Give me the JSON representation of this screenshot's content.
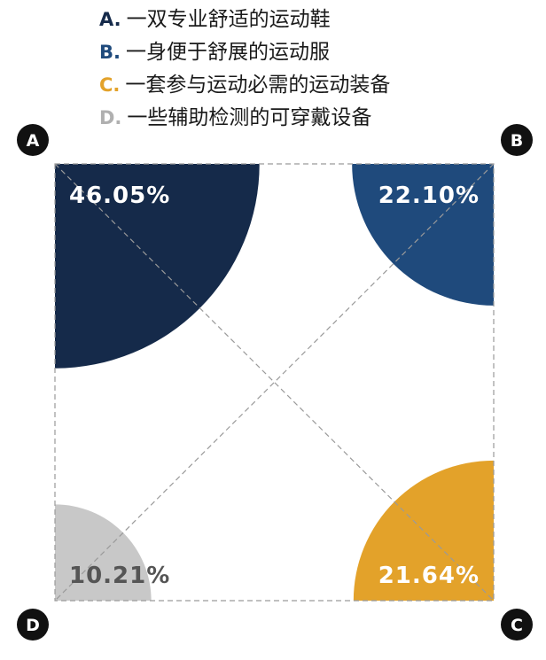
{
  "chart_data": {
    "type": "pie",
    "colors": {
      "A": "#152a4a",
      "B": "#1f4a7c",
      "C": "#e3a22a",
      "D": "#c8c8c8"
    },
    "corner_labels": [
      "A",
      "B",
      "C",
      "D"
    ],
    "legend": [
      {
        "key": "A.",
        "label": "一双专业舒适的运动鞋"
      },
      {
        "key": "B.",
        "label": "一身便于舒展的运动服"
      },
      {
        "key": "C.",
        "label": "一套参与运动必需的运动装备"
      },
      {
        "key": "D.",
        "label": "一些辅助检测的可穿戴设备"
      }
    ],
    "slices": [
      {
        "key": "A",
        "value": 46.05,
        "label": "46.05%"
      },
      {
        "key": "B",
        "value": 22.1,
        "label": "22.10%"
      },
      {
        "key": "C",
        "value": 21.64,
        "label": "21.64%"
      },
      {
        "key": "D",
        "value": 10.21,
        "label": "10.21%"
      }
    ]
  }
}
